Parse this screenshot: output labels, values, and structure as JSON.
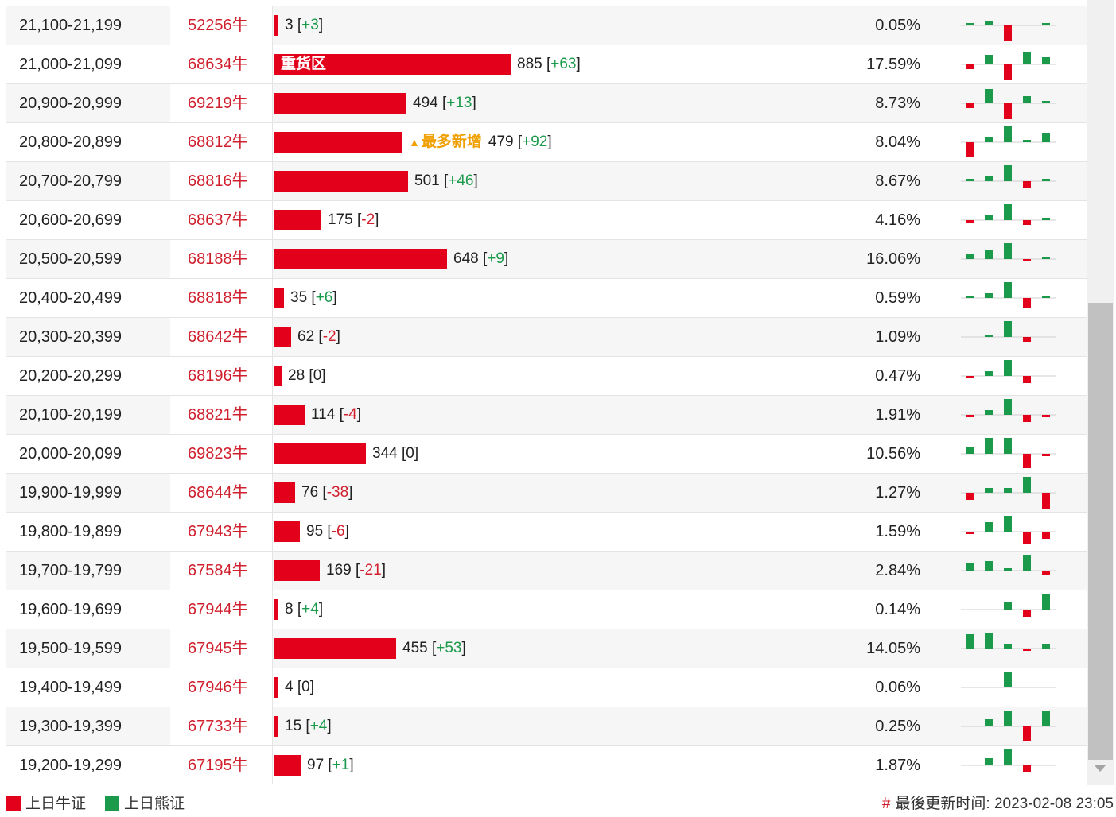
{
  "colors": {
    "bull": "#e3001b",
    "bear": "#1a9a4a",
    "highlight": "#f0a000"
  },
  "bar_scale_max_count": 885,
  "rows": [
    {
      "range": "21,100-21,199",
      "code": "52256牛",
      "count": 3,
      "change": "+3",
      "pct": "0.05%",
      "spark": [
        1,
        2,
        -8,
        0,
        1
      ]
    },
    {
      "range": "21,000-21,099",
      "code": "68634牛",
      "count": 885,
      "change": "+63",
      "pct": "17.59%",
      "bar_text": "重货区",
      "spark": [
        -2,
        4,
        -8,
        5,
        3
      ]
    },
    {
      "range": "20,900-20,999",
      "code": "69219牛",
      "count": 494,
      "change": "+13",
      "pct": "8.73%",
      "spark": [
        -2,
        6,
        -8,
        3,
        1
      ]
    },
    {
      "range": "20,800-20,899",
      "code": "68812牛",
      "count": 479,
      "change": "+92",
      "pct": "8.04%",
      "tag": "最多新增",
      "spark": [
        -6,
        2,
        8,
        1,
        4
      ]
    },
    {
      "range": "20,700-20,799",
      "code": "68816牛",
      "count": 501,
      "change": "+46",
      "pct": "8.67%",
      "spark": [
        1,
        2,
        7,
        -3,
        1
      ]
    },
    {
      "range": "20,600-20,699",
      "code": "68637牛",
      "count": 175,
      "change": "-2",
      "pct": "4.16%",
      "spark": [
        -1,
        2,
        7,
        -2,
        1
      ]
    },
    {
      "range": "20,500-20,599",
      "code": "68188牛",
      "count": 648,
      "change": "+9",
      "pct": "16.06%",
      "spark": [
        2,
        4,
        7,
        -1,
        1
      ]
    },
    {
      "range": "20,400-20,499",
      "code": "68818牛",
      "count": 35,
      "change": "+6",
      "pct": "0.59%",
      "spark": [
        1,
        2,
        7,
        -4,
        1
      ]
    },
    {
      "range": "20,300-20,399",
      "code": "68642牛",
      "count": 62,
      "change": "-2",
      "pct": "1.09%",
      "spark": [
        0,
        1,
        7,
        -2,
        0
      ]
    },
    {
      "range": "20,200-20,299",
      "code": "68196牛",
      "count": 28,
      "change": "0",
      "pct": "0.47%",
      "spark": [
        -1,
        2,
        7,
        -3,
        0
      ]
    },
    {
      "range": "20,100-20,199",
      "code": "68821牛",
      "count": 114,
      "change": "-4",
      "pct": "1.91%",
      "spark": [
        -1,
        2,
        7,
        -3,
        -1
      ]
    },
    {
      "range": "20,000-20,099",
      "code": "69823牛",
      "count": 344,
      "change": "0",
      "pct": "10.56%",
      "spark": [
        3,
        7,
        7,
        -6,
        -1
      ]
    },
    {
      "range": "19,900-19,999",
      "code": "68644牛",
      "count": 76,
      "change": "-38",
      "pct": "1.27%",
      "spark": [
        -3,
        2,
        2,
        7,
        -7
      ]
    },
    {
      "range": "19,800-19,899",
      "code": "67943牛",
      "count": 95,
      "change": "-6",
      "pct": "1.59%",
      "spark": [
        -1,
        4,
        7,
        -5,
        -3
      ]
    },
    {
      "range": "19,700-19,799",
      "code": "67584牛",
      "count": 169,
      "change": "-21",
      "pct": "2.84%",
      "spark": [
        3,
        4,
        1,
        7,
        -2
      ]
    },
    {
      "range": "19,600-19,699",
      "code": "67944牛",
      "count": 8,
      "change": "+4",
      "pct": "0.14%",
      "spark": [
        0,
        0,
        3,
        -3,
        7
      ]
    },
    {
      "range": "19,500-19,599",
      "code": "67945牛",
      "count": 455,
      "change": "+53",
      "pct": "14.05%",
      "spark": [
        6,
        7,
        2,
        -1,
        2
      ]
    },
    {
      "range": "19,400-19,499",
      "code": "67946牛",
      "count": 4,
      "change": "0",
      "pct": "0.06%",
      "spark": [
        0,
        0,
        7,
        0,
        0
      ]
    },
    {
      "range": "19,300-19,399",
      "code": "67733牛",
      "count": 15,
      "change": "+4",
      "pct": "0.25%",
      "spark": [
        0,
        3,
        7,
        -6,
        7
      ]
    },
    {
      "range": "19,200-19,299",
      "code": "67195牛",
      "count": 97,
      "change": "+1",
      "pct": "1.87%",
      "spark": [
        0,
        3,
        7,
        -3,
        0
      ]
    }
  ],
  "footer": {
    "legend_bull": "上日牛证",
    "legend_bear": "上日熊证",
    "update_label": "最後更新时间:",
    "update_time": "2023-02-08 23:05"
  }
}
